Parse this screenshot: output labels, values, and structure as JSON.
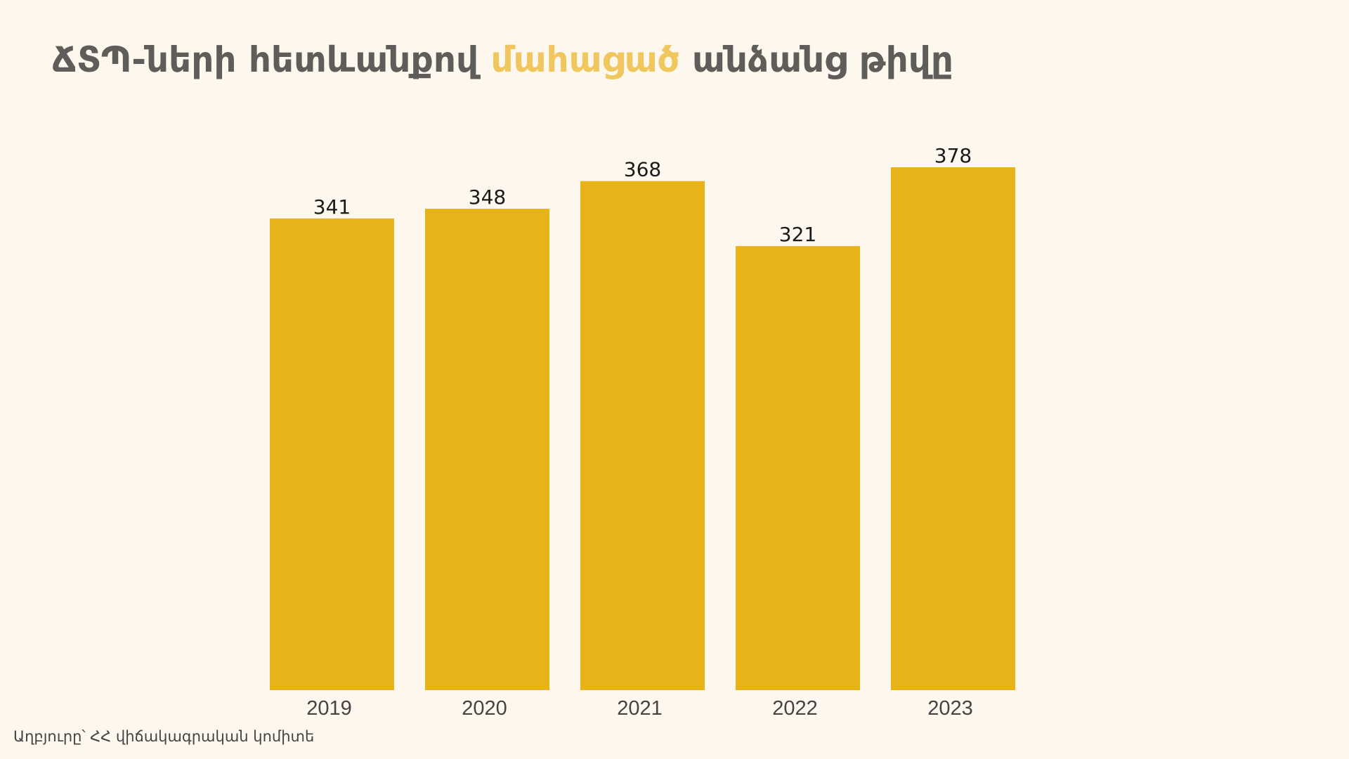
{
  "title": {
    "part1": "ՃՏՊ-ների հետևանքով ",
    "highlight": "մահացած",
    "part2": " անձանց թիվը"
  },
  "source": "Աղբյուրը՝ ՀՀ վիճակագրական կոմիտե",
  "colors": {
    "background": "#fdf7ed",
    "bar": "#e8b319",
    "title": "#5f5d59",
    "accent": "#efc75e"
  },
  "chart_data": {
    "type": "bar",
    "categories": [
      "2019",
      "2020",
      "2021",
      "2022",
      "2023"
    ],
    "values": [
      341,
      348,
      368,
      321,
      378
    ],
    "title": "ՃՏՊ-ների հետևանքով մահացած անձանց թիվը",
    "xlabel": "",
    "ylabel": "",
    "ylim": [
      0,
      378
    ],
    "grid": false,
    "legend": "none",
    "data_labels": true
  }
}
